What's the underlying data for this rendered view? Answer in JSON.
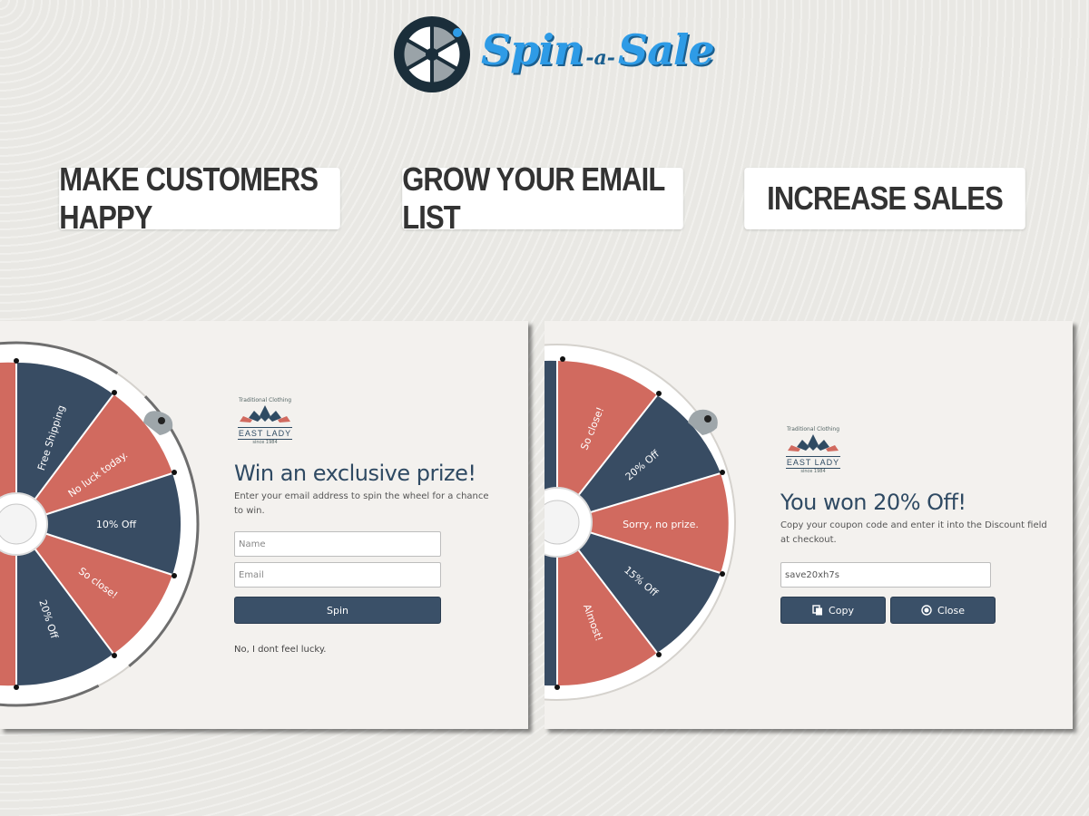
{
  "brand": {
    "name_part1": "Spin",
    "name_part2": "-a-",
    "name_part3": "Sale",
    "colors": {
      "primary": "#2e9be6",
      "dark": "#1b3a4b"
    }
  },
  "features": [
    "MAKE CUSTOMERS HAPPY",
    "GROW YOUR EMAIL LIST",
    "INCREASE SALES"
  ],
  "store": {
    "tagline": "Traditional Clothing",
    "name": "EAST LADY",
    "since": "since 1984"
  },
  "left_panel": {
    "heading": "Win an exclusive prize!",
    "subtext": "Enter your email address to spin the wheel for a chance to win.",
    "name_placeholder": "Name",
    "email_placeholder": "Email",
    "spin_label": "Spin",
    "decline_label": "No, I dont feel lucky.",
    "wheel_labels": [
      "Free Shipping",
      "No luck today.",
      "10% Off",
      "So close!",
      "20% Off"
    ]
  },
  "right_panel": {
    "heading": "You won 20% Off!",
    "subtext": "Copy your coupon code and enter it into the Discount field at checkout.",
    "coupon_code": "save20xh7s",
    "copy_label": "Copy",
    "close_label": "Close",
    "wheel_labels": [
      "So close!",
      "20% Off",
      "Sorry, no prize.",
      "15% Off",
      "Almost!"
    ]
  },
  "colors": {
    "wheel_red": "#d16a5f",
    "wheel_navy": "#384c63",
    "button": "#3a5068",
    "heading": "#2f4a63"
  }
}
